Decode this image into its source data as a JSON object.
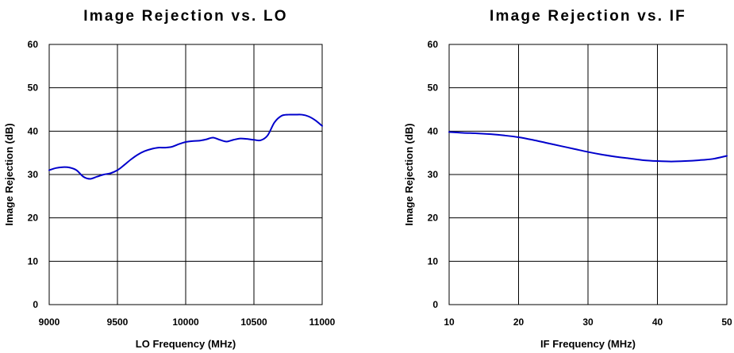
{
  "chart_data": [
    {
      "type": "line",
      "title": "Image Rejection vs. LO",
      "xlabel": "LO Frequency (MHz)",
      "ylabel": "Image Rejection (dB)",
      "xlim": [
        9000,
        11000
      ],
      "ylim": [
        0,
        60
      ],
      "x_ticks": [
        9000,
        9500,
        10000,
        10500,
        11000
      ],
      "y_ticks": [
        0,
        10,
        20,
        30,
        40,
        50,
        60
      ],
      "grid": true,
      "line_color": "#0000cc",
      "series": [
        {
          "x": [
            9000,
            9050,
            9100,
            9150,
            9200,
            9250,
            9300,
            9350,
            9400,
            9450,
            9500,
            9550,
            9600,
            9650,
            9700,
            9750,
            9800,
            9850,
            9900,
            9950,
            10000,
            10050,
            10100,
            10150,
            10200,
            10250,
            10300,
            10350,
            10400,
            10450,
            10500,
            10550,
            10600,
            10650,
            10700,
            10750,
            10800,
            10850,
            10900,
            10950,
            11000
          ],
          "y": [
            31.0,
            31.5,
            31.7,
            31.6,
            31.0,
            29.5,
            29.0,
            29.5,
            30.0,
            30.3,
            31.0,
            32.2,
            33.5,
            34.6,
            35.4,
            35.9,
            36.2,
            36.2,
            36.4,
            37.0,
            37.5,
            37.7,
            37.8,
            38.1,
            38.5,
            38.0,
            37.6,
            38.0,
            38.3,
            38.2,
            38.0,
            37.9,
            39.0,
            42.0,
            43.5,
            43.8,
            43.8,
            43.8,
            43.4,
            42.5,
            41.2
          ]
        }
      ]
    },
    {
      "type": "line",
      "title": "Image Rejection vs. IF",
      "xlabel": "IF Frequency (MHz)",
      "ylabel": "Image Rejection (dB)",
      "xlim": [
        10,
        50
      ],
      "ylim": [
        0,
        60
      ],
      "x_ticks": [
        10,
        20,
        30,
        40,
        50
      ],
      "y_ticks": [
        0,
        10,
        20,
        30,
        40,
        50,
        60
      ],
      "grid": true,
      "line_color": "#0000cc",
      "series": [
        {
          "x": [
            10,
            12,
            14,
            16,
            18,
            20,
            22,
            24,
            26,
            28,
            30,
            32,
            34,
            36,
            38,
            40,
            42,
            44,
            46,
            48,
            50
          ],
          "y": [
            39.8,
            39.6,
            39.5,
            39.3,
            39.0,
            38.6,
            38.0,
            37.3,
            36.6,
            35.9,
            35.2,
            34.6,
            34.1,
            33.7,
            33.3,
            33.1,
            33.0,
            33.1,
            33.3,
            33.6,
            34.3
          ]
        }
      ]
    }
  ]
}
